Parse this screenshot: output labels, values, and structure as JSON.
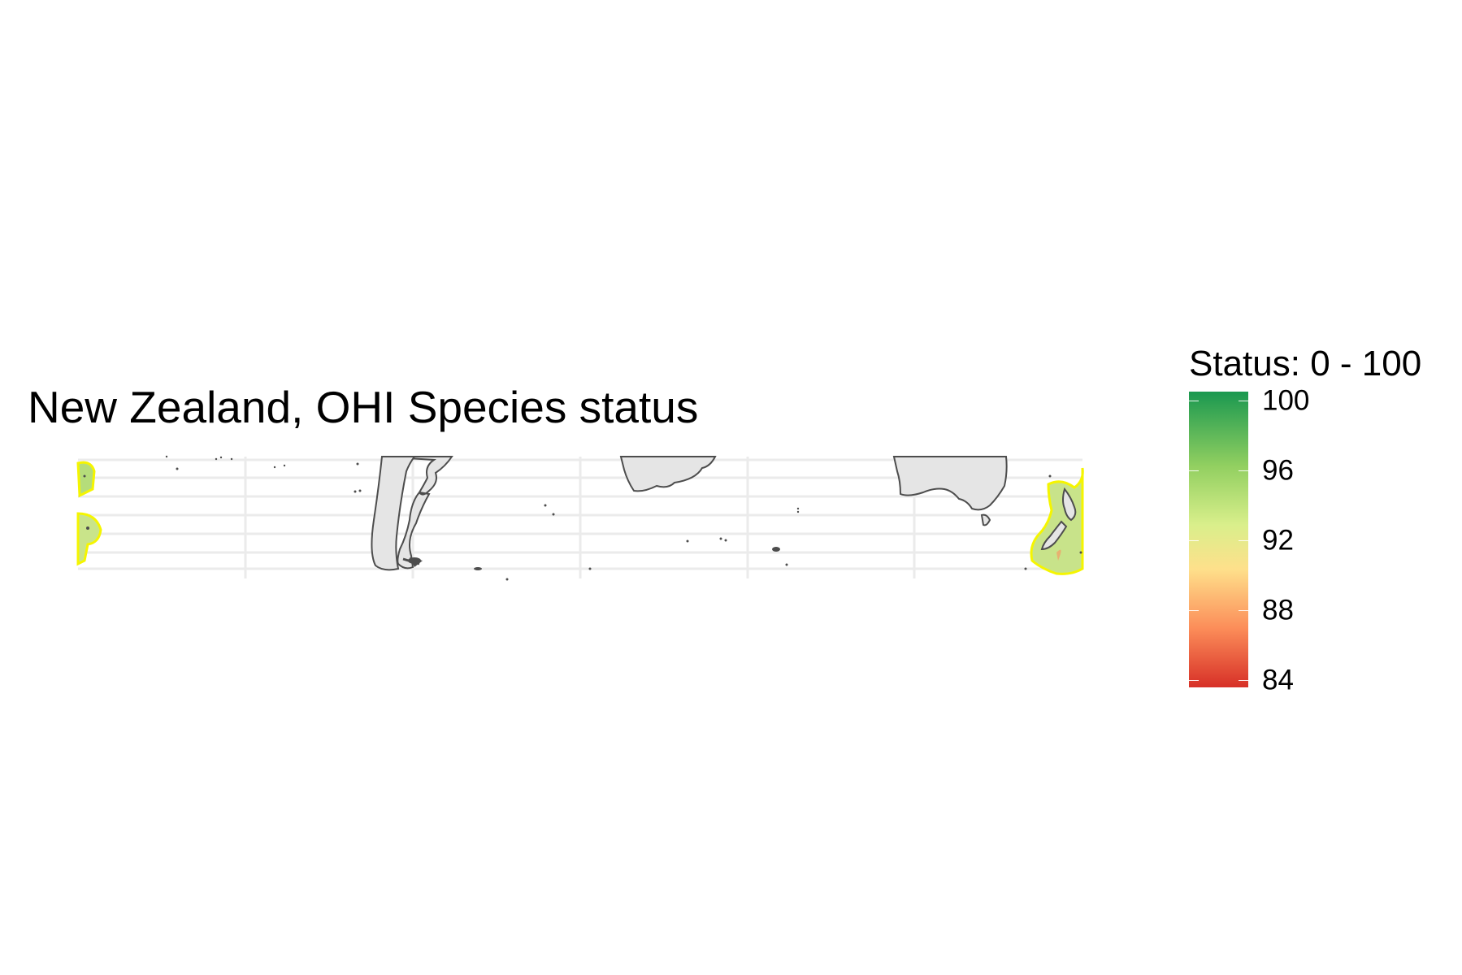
{
  "title": "New Zealand, OHI Species status",
  "legend": {
    "title": "Status: 0 - 100",
    "ticks": [
      "100",
      "96",
      "92",
      "88",
      "84"
    ],
    "colors": [
      "#1a9850",
      "#91cf60",
      "#d9ef8b",
      "#fee08b",
      "#fc8d59",
      "#d73027"
    ]
  },
  "map": {
    "land_fill": "#e5e5e5",
    "land_stroke": "#4d4d4d",
    "region_highlight": "New Zealand EEZ",
    "region_outline": "#f5f500",
    "grid_color": "#ebebeb"
  }
}
